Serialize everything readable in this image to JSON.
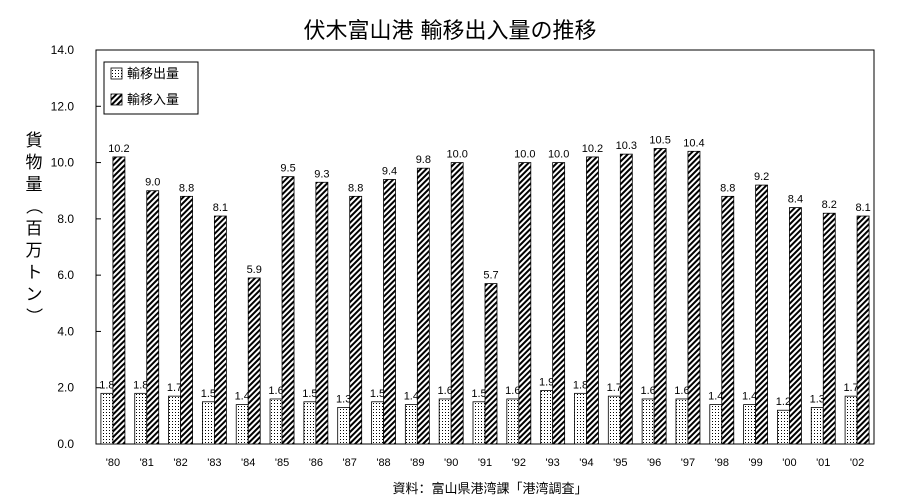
{
  "chart_data": {
    "type": "bar",
    "title": "伏木富山港 輸移出入量の推移",
    "ylabel": "貨物量（百万トン）",
    "xlabel": "",
    "ylim": [
      0,
      14
    ],
    "yticks": [
      "0.0",
      "2.0",
      "4.0",
      "6.0",
      "8.0",
      "10.0",
      "12.0",
      "14.0"
    ],
    "grid": false,
    "legend_position": "top-left",
    "categories": [
      "'80",
      "'81",
      "'82",
      "'83",
      "'84",
      "'85",
      "'86",
      "'87",
      "'88",
      "'89",
      "'90",
      "'91",
      "'92",
      "'93",
      "'94",
      "'95",
      "'96",
      "'97",
      "'98",
      "'99",
      "'00",
      "'01",
      "'02"
    ],
    "series": [
      {
        "name": "輸移出量",
        "pattern": "dots",
        "values": [
          1.8,
          1.8,
          1.7,
          1.5,
          1.4,
          1.6,
          1.5,
          1.3,
          1.5,
          1.4,
          1.6,
          1.5,
          1.6,
          1.9,
          1.8,
          1.7,
          1.6,
          1.6,
          1.4,
          1.4,
          1.2,
          1.3,
          1.7
        ],
        "labels": [
          "1.8",
          "1.8",
          "1.7",
          "1.5",
          "1.4",
          "1.6",
          "1.5",
          "1.3",
          "1.5",
          "1.4",
          "1.6",
          "1.5",
          "1.6",
          "1.9",
          "1.8",
          "1.7",
          "1.6",
          "1.6",
          "1.4",
          "1.4",
          "1.2",
          "1.3",
          "1.7"
        ]
      },
      {
        "name": "輸移入量",
        "pattern": "diagonal-hatch",
        "values": [
          10.2,
          9.0,
          8.8,
          8.1,
          5.9,
          9.5,
          9.3,
          8.8,
          9.4,
          9.8,
          10.0,
          5.7,
          10.0,
          10.0,
          10.2,
          10.3,
          10.5,
          10.4,
          8.8,
          9.2,
          8.4,
          8.2,
          8.1
        ],
        "labels": [
          "10.2",
          "9.0",
          "8.8",
          "8.1",
          "5.9",
          "9.5",
          "9.3",
          "8.8",
          "9.4",
          "9.8",
          "10.0",
          "5.7",
          "10.0",
          "10.0",
          "10.2",
          "10.3",
          "10.5",
          "10.4",
          "8.8",
          "9.2",
          "8.4",
          "8.2",
          "8.1"
        ]
      }
    ],
    "source": "資料：富山県港湾課「港湾調査」"
  }
}
